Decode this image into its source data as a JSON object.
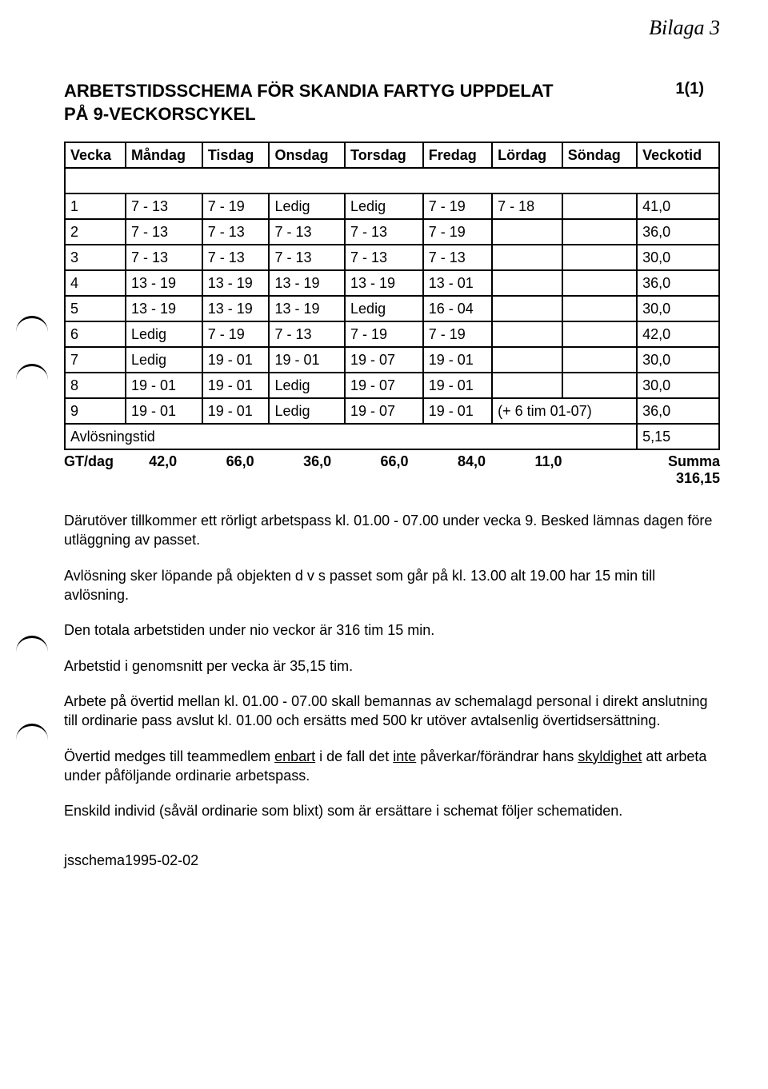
{
  "handwritten": "Bilaga 3",
  "title_line1": "ARBETSTIDSSCHEMA FÖR SKANDIA FARTYG UPPDELAT",
  "title_line2": "PÅ 9-VECKORSCYKEL",
  "page_number": "1(1)",
  "headers": [
    "Vecka",
    "Måndag",
    "Tisdag",
    "Onsdag",
    "Torsdag",
    "Fredag",
    "Lördag",
    "Söndag",
    "Veckotid"
  ],
  "rows": [
    [
      "1",
      "7 - 13",
      "7 - 19",
      "Ledig",
      "Ledig",
      "7 - 19",
      "7 - 18",
      "",
      "41,0"
    ],
    [
      "2",
      "7 - 13",
      "7 - 13",
      "7 - 13",
      "7 - 13",
      "7 - 19",
      "",
      "",
      "36,0"
    ],
    [
      "3",
      "7 - 13",
      "7 - 13",
      "7 - 13",
      "7 - 13",
      "7 - 13",
      "",
      "",
      "30,0"
    ],
    [
      "4",
      "13 - 19",
      "13 - 19",
      "13 - 19",
      "13 - 19",
      "13 - 01",
      "",
      "",
      "36,0"
    ],
    [
      "5",
      "13 - 19",
      "13 - 19",
      "13 - 19",
      "Ledig",
      "16 - 04",
      "",
      "",
      "30,0"
    ],
    [
      "6",
      "Ledig",
      "7 - 19",
      "7 - 13",
      "7 - 19",
      "7 - 19",
      "",
      "",
      "42,0"
    ],
    [
      "7",
      "Ledig",
      "19 - 01",
      "19 - 01",
      "19 - 07",
      "19 - 01",
      "",
      "",
      "30,0"
    ],
    [
      "8",
      "19 - 01",
      "19 - 01",
      "Ledig",
      "19 - 07",
      "19 - 01",
      "",
      "",
      "30,0"
    ]
  ],
  "row9": {
    "cells": [
      "9",
      "19 - 01",
      "19 - 01",
      "Ledig",
      "19 - 07",
      "19 - 01"
    ],
    "merged": "(+ 6 tim 01-07)",
    "veckotid": "36,0"
  },
  "avlos_label": "Avlösningstid",
  "avlos_value": "5,15",
  "summa_label": "Summa",
  "summa_value": "316,15",
  "gt_label": "GT/dag",
  "gt_values": [
    "42,0",
    "66,0",
    "36,0",
    "66,0",
    "84,0",
    "11,0"
  ],
  "paragraphs": {
    "p1": "Därutöver tillkommer ett rörligt arbetspass kl. 01.00 - 07.00 under vecka 9. Besked lämnas dagen före utläggning av passet.",
    "p2": "Avlösning sker löpande på objekten d v s passet som går på kl. 13.00 alt 19.00 har 15 min till avlösning.",
    "p3": "Den totala arbetstiden under nio veckor är 316 tim 15 min.",
    "p4": "Arbetstid i genomsnitt per vecka är 35,15 tim.",
    "p5": "Arbete på övertid mellan kl. 01.00 - 07.00 skall bemannas av schemalagd personal i direkt anslutning till ordinarie pass avslut kl. 01.00 och ersätts med 500 kr utöver avtalsenlig övertidsersättning.",
    "p6a": "Övertid medges till teammedlem ",
    "p6b": "enbart",
    "p6c": " i de fall det ",
    "p6d": "inte",
    "p6e": " påverkar/förändrar hans ",
    "p6f": "skyldighet",
    "p6g": " att arbeta under påföljande ordinarie arbetspass.",
    "p7": "Enskild individ (såväl ordinarie som blixt) som är ersättare i schemat följer schematiden."
  },
  "footer": "jsschema1995-02-02"
}
